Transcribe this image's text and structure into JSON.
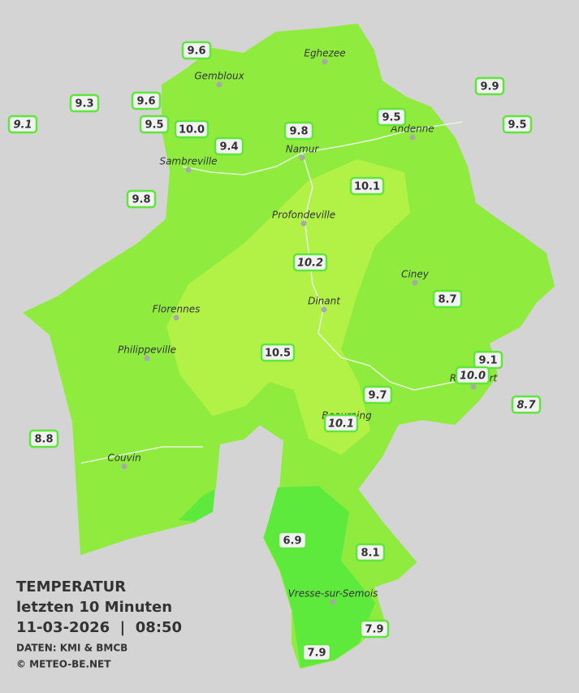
{
  "legend": {
    "title": "TEMPERATUR",
    "period": "letzten 10 Minuten",
    "timestamp": "11-03-2026  |  08:50",
    "source": "DATEN: KMI & BMCB",
    "copyright": "© METEO-BE.NET"
  },
  "towns": [
    "Eghezee",
    "Gembloux",
    "Andenne",
    "Namur",
    "Sambreville",
    "Profondeville",
    "Ciney",
    "Dinant",
    "Florennes",
    "Philippeville",
    "Rochefort",
    "Beauraing",
    "Couvin",
    "Vresse-sur-Semois"
  ],
  "stations": [
    "9.6",
    "9.3",
    "9.6",
    "9.1",
    "9.5",
    "10.0",
    "9.4",
    "9.8",
    "9.5",
    "9.9",
    "9.5",
    "9.8",
    "10.1",
    "10.2",
    "8.7",
    "10.5",
    "9.1",
    "10.0",
    "8.7",
    "9.7",
    "10.1",
    "8.8",
    "6.9",
    "8.1",
    "7.9",
    "7.9"
  ]
}
